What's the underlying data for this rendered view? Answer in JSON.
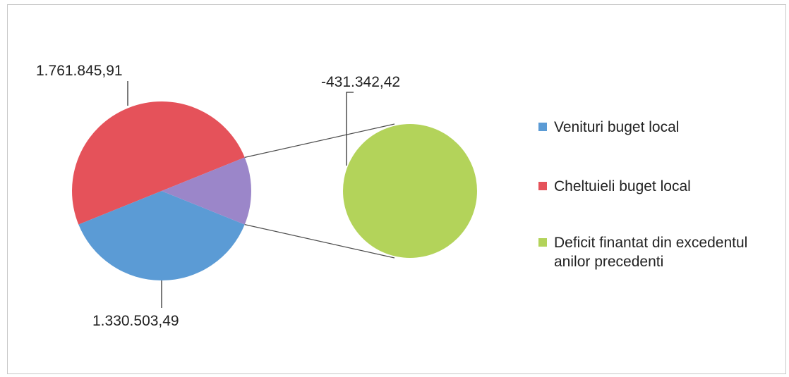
{
  "chart_data": {
    "type": "pie",
    "variant": "pie-of-pie",
    "slices": [
      {
        "name": "Venituri buget local",
        "value": 1330503.49,
        "label": "1.330.503,49",
        "color": "#5b9bd5"
      },
      {
        "name": "Cheltuieli buget local",
        "value": 1761845.91,
        "label": "1.761.845,91",
        "color": "#e5525a"
      },
      {
        "name": "Deficit finantat din excedentul anilor precedenti",
        "value": -431342.42,
        "label": "-431.342,42",
        "color": "#b3d35a"
      }
    ],
    "split_slice_color": "#9b86c9",
    "legend": {
      "position": "right",
      "items": [
        {
          "label": "Venituri buget local",
          "color": "#5b9bd5"
        },
        {
          "label": "Cheltuieli buget local",
          "color": "#e5525a"
        },
        {
          "label": "Deficit finantat din excedentul anilor precedenti",
          "color": "#b3d35a"
        }
      ]
    }
  }
}
